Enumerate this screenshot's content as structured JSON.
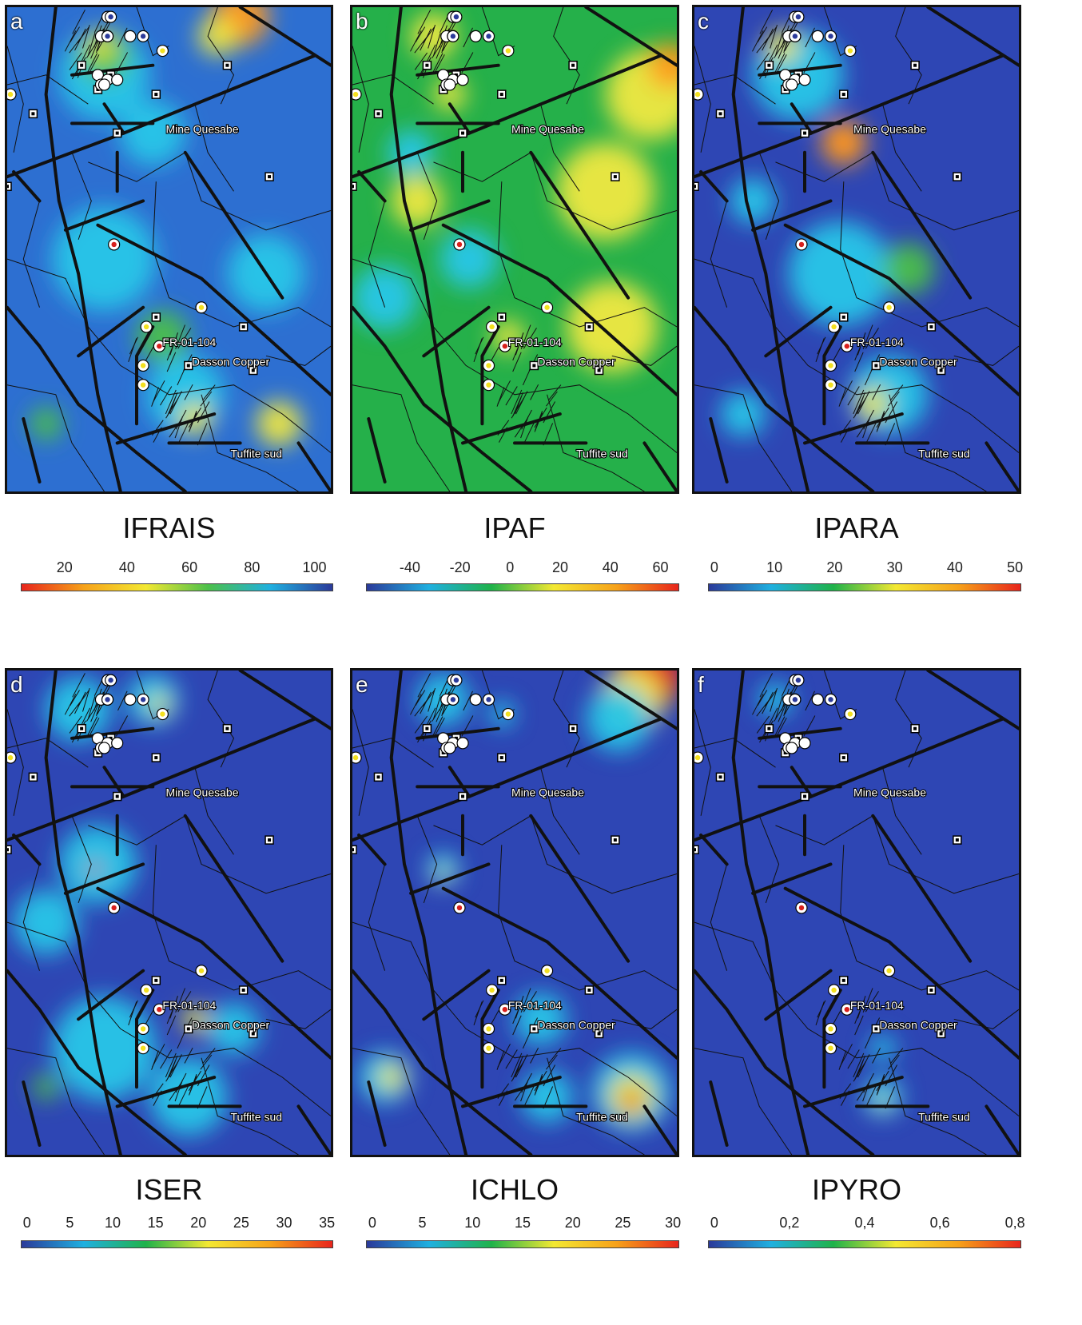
{
  "panels": [
    {
      "letter": "a",
      "title": "IFRAIS",
      "scale": "ifrais",
      "ticks": [
        "20",
        "40",
        "60",
        "80",
        "100"
      ],
      "gradient": [
        "#e8251c",
        "#f6a21a",
        "#f3e832",
        "#4cc04a",
        "#1fb0e0",
        "#2b3a9a"
      ],
      "base": "#2d6fd1",
      "blobs": [
        [
          "#ff9a1a",
          0.72,
          0.02,
          0.09
        ],
        [
          "#f0e840",
          0.65,
          0.06,
          0.06
        ],
        [
          "#26c6e8",
          0.3,
          0.14,
          0.14
        ],
        [
          "#4cc04a",
          0.3,
          0.1,
          0.08
        ],
        [
          "#f0e840",
          0.29,
          0.08,
          0.04
        ],
        [
          "#26c6e8",
          0.45,
          0.26,
          0.1
        ],
        [
          "#26c6e8",
          0.3,
          0.52,
          0.16
        ],
        [
          "#4cc04a",
          0.48,
          0.68,
          0.08
        ],
        [
          "#26c6e8",
          0.55,
          0.8,
          0.12
        ],
        [
          "#f0e840",
          0.84,
          0.86,
          0.07
        ],
        [
          "#4cc04a",
          0.12,
          0.86,
          0.05
        ],
        [
          "#26c6e8",
          0.8,
          0.55,
          0.12
        ],
        [
          "#f0e840",
          0.58,
          0.85,
          0.05
        ]
      ]
    },
    {
      "letter": "b",
      "title": "IPAF",
      "scale": "ipaf",
      "ticks": [
        "-40",
        "-20",
        "0",
        "20",
        "40",
        "60"
      ],
      "gradient": [
        "#2b3a9a",
        "#1fb0e0",
        "#1fb24a",
        "#f3e832",
        "#f6a21a",
        "#e8251c"
      ],
      "base": "#25b04a",
      "blobs": [
        [
          "#f0e840",
          0.92,
          0.18,
          0.14
        ],
        [
          "#ff9a1a",
          0.98,
          0.12,
          0.07
        ],
        [
          "#f0e840",
          0.78,
          0.38,
          0.15
        ],
        [
          "#f0e840",
          0.8,
          0.66,
          0.14
        ],
        [
          "#f0e840",
          0.25,
          0.06,
          0.07
        ],
        [
          "#f0e840",
          0.2,
          0.4,
          0.08
        ],
        [
          "#26c6e8",
          0.36,
          0.52,
          0.09
        ],
        [
          "#26c6e8",
          0.1,
          0.6,
          0.1
        ],
        [
          "#f0e840",
          0.48,
          0.68,
          0.05
        ],
        [
          "#26c6e8",
          0.18,
          0.3,
          0.07
        ],
        [
          "#f0e840",
          0.3,
          0.18,
          0.05
        ]
      ]
    },
    {
      "letter": "c",
      "title": "IPARA",
      "scale": "ipara",
      "ticks": [
        "0",
        "10",
        "20",
        "30",
        "40",
        "50"
      ],
      "gradient": [
        "#2b3a9a",
        "#1fb0e0",
        "#1fb24a",
        "#f3e832",
        "#f6a21a",
        "#e8251c"
      ],
      "base": "#2e46b4",
      "blobs": [
        [
          "#e8251c",
          0.46,
          0.28,
          0.04
        ],
        [
          "#ff9a1a",
          0.46,
          0.28,
          0.07
        ],
        [
          "#26c6e8",
          0.32,
          0.14,
          0.14
        ],
        [
          "#f0e840",
          0.27,
          0.08,
          0.05
        ],
        [
          "#26c6e8",
          0.45,
          0.55,
          0.16
        ],
        [
          "#4cc04a",
          0.66,
          0.54,
          0.08
        ],
        [
          "#26c6e8",
          0.6,
          0.8,
          0.12
        ],
        [
          "#f0e840",
          0.55,
          0.82,
          0.05
        ],
        [
          "#26c6e8",
          0.15,
          0.84,
          0.07
        ],
        [
          "#26c6e8",
          0.18,
          0.4,
          0.07
        ]
      ]
    },
    {
      "letter": "d",
      "title": "ISER",
      "scale": "iser",
      "ticks": [
        "0",
        "5",
        "10",
        "15",
        "20",
        "25",
        "30",
        "35"
      ],
      "gradient": [
        "#2b3a9a",
        "#1fb0e0",
        "#1fb24a",
        "#f3e832",
        "#f6a21a",
        "#e8251c"
      ],
      "base": "#2e46b4",
      "blobs": [
        [
          "#26c6e8",
          0.45,
          0.06,
          0.08
        ],
        [
          "#f0e840",
          0.47,
          0.07,
          0.03
        ],
        [
          "#26c6e8",
          0.22,
          0.08,
          0.1
        ],
        [
          "#26c6e8",
          0.28,
          0.4,
          0.12
        ],
        [
          "#e8251c",
          0.27,
          0.41,
          0.02
        ],
        [
          "#26c6e8",
          0.12,
          0.52,
          0.1
        ],
        [
          "#26c6e8",
          0.3,
          0.78,
          0.16
        ],
        [
          "#f0e840",
          0.58,
          0.72,
          0.04
        ],
        [
          "#26c6e8",
          0.56,
          0.88,
          0.12
        ],
        [
          "#4cc04a",
          0.12,
          0.86,
          0.04
        ],
        [
          "#26c6e8",
          0.7,
          0.74,
          0.08
        ]
      ]
    },
    {
      "letter": "e",
      "title": "ICHLO",
      "scale": "ichlo",
      "ticks": [
        "0",
        "5",
        "10",
        "15",
        "20",
        "25",
        "30"
      ],
      "gradient": [
        "#2b3a9a",
        "#1fb0e0",
        "#1fb24a",
        "#f3e832",
        "#f6a21a",
        "#e8251c"
      ],
      "base": "#2e46b4",
      "blobs": [
        [
          "#e8251c",
          0.92,
          0.01,
          0.1
        ],
        [
          "#f0e840",
          0.86,
          0.06,
          0.1
        ],
        [
          "#26c6e8",
          0.82,
          0.1,
          0.1
        ],
        [
          "#26c6e8",
          0.28,
          0.06,
          0.08
        ],
        [
          "#26c6e8",
          0.46,
          0.09,
          0.04
        ],
        [
          "#26c6e8",
          0.28,
          0.41,
          0.05
        ],
        [
          "#f0e840",
          0.28,
          0.42,
          0.02
        ],
        [
          "#26c6e8",
          0.1,
          0.84,
          0.08
        ],
        [
          "#f0e840",
          0.12,
          0.84,
          0.04
        ],
        [
          "#26c6e8",
          0.86,
          0.87,
          0.12
        ],
        [
          "#f0e840",
          0.86,
          0.88,
          0.07
        ],
        [
          "#e8251c",
          0.86,
          0.89,
          0.03
        ],
        [
          "#26c6e8",
          0.58,
          0.72,
          0.08
        ],
        [
          "#26c6e8",
          0.6,
          0.88,
          0.08
        ]
      ]
    },
    {
      "letter": "f",
      "title": "IPYRO",
      "scale": "ipyro",
      "ticks": [
        "0",
        "0,2",
        "0,4",
        "0,6",
        "0,8"
      ],
      "gradient": [
        "#2b3a9a",
        "#1fb0e0",
        "#1fb24a",
        "#f3e832",
        "#f6a21a",
        "#e8251c"
      ],
      "base": "#2e46b4",
      "blobs": [
        [
          "#26c6e8",
          0.25,
          0.06,
          0.05
        ],
        [
          "#26c6e8",
          0.58,
          0.88,
          0.06
        ],
        [
          "#26c6e8",
          0.58,
          0.78,
          0.04
        ],
        [
          "#f0e840",
          0.58,
          0.89,
          0.02
        ]
      ]
    }
  ],
  "labels": {
    "mine_quesabe": "Mine Quesabe",
    "fr_01_104": "FR-01-104",
    "dasson_copper": "Dasson Copper",
    "tuffite_sud": "Tuffite sud"
  },
  "sites": {
    "squares": [
      [
        0.32,
        0.14
      ],
      [
        0.23,
        0.12
      ],
      [
        0.68,
        0.12
      ],
      [
        0.46,
        0.18
      ],
      [
        0.28,
        0.17
      ],
      [
        0.08,
        0.22
      ],
      [
        0.34,
        0.26
      ],
      [
        0.0,
        0.37
      ],
      [
        0.81,
        0.35
      ],
      [
        0.46,
        0.64
      ],
      [
        0.73,
        0.66
      ],
      [
        0.56,
        0.74
      ],
      [
        0.76,
        0.75
      ]
    ],
    "white": [
      [
        0.31,
        0.02
      ],
      [
        0.29,
        0.06
      ],
      [
        0.31,
        0.06
      ],
      [
        0.38,
        0.06
      ],
      [
        0.28,
        0.14
      ],
      [
        0.31,
        0.15
      ],
      [
        0.34,
        0.15
      ],
      [
        0.29,
        0.16
      ],
      [
        0.3,
        0.16
      ]
    ],
    "blue": [
      [
        0.32,
        0.02
      ],
      [
        0.31,
        0.06
      ],
      [
        0.42,
        0.06
      ]
    ],
    "yellow": [
      [
        0.48,
        0.09
      ],
      [
        0.01,
        0.18
      ],
      [
        0.6,
        0.62
      ],
      [
        0.43,
        0.66
      ],
      [
        0.42,
        0.74
      ],
      [
        0.42,
        0.78
      ]
    ],
    "red": [
      [
        0.33,
        0.49
      ],
      [
        0.47,
        0.7
      ]
    ]
  }
}
